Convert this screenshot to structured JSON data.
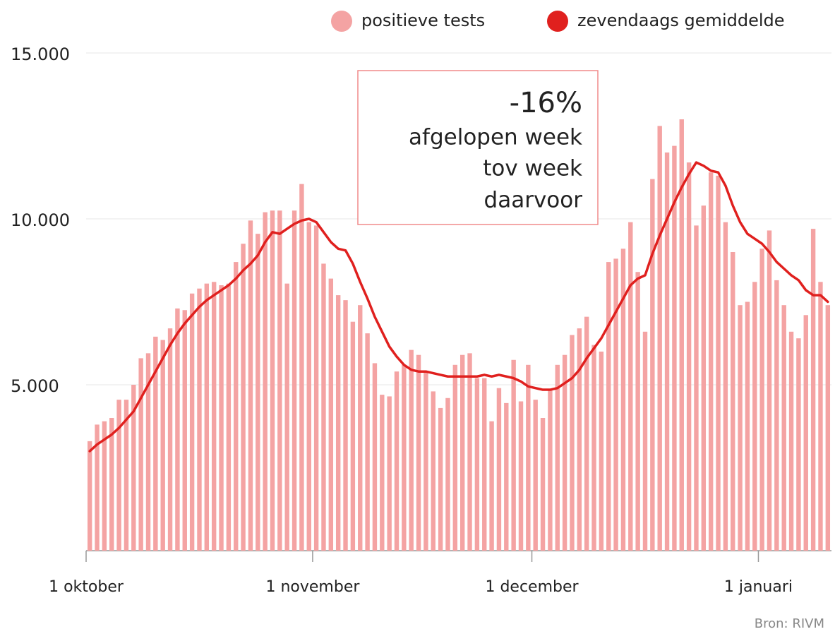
{
  "chart_data": {
    "type": "bar",
    "categories": [
      "1 oktober",
      null,
      null,
      null,
      null,
      null,
      null,
      null,
      null,
      null,
      null,
      null,
      null,
      null,
      null,
      null,
      null,
      null,
      null,
      null,
      null,
      null,
      null,
      null,
      null,
      null,
      null,
      null,
      null,
      null,
      null,
      "1 november",
      null,
      null,
      null,
      null,
      null,
      null,
      null,
      null,
      null,
      null,
      null,
      null,
      null,
      null,
      null,
      null,
      null,
      null,
      null,
      null,
      null,
      null,
      null,
      null,
      null,
      null,
      null,
      null,
      null,
      "1 december",
      null,
      null,
      null,
      null,
      null,
      null,
      null,
      null,
      null,
      null,
      null,
      null,
      null,
      null,
      null,
      null,
      null,
      null,
      null,
      null,
      null,
      null,
      null,
      null,
      null,
      null,
      null,
      null,
      null,
      null,
      "1 januari",
      null,
      null,
      null,
      null,
      null,
      null,
      null,
      null,
      null
    ],
    "series": [
      {
        "name": "positieve tests",
        "type": "bar",
        "color": "#f4a3a3",
        "values": [
          3300,
          3800,
          3900,
          4000,
          4550,
          4550,
          5000,
          5800,
          5950,
          6450,
          6350,
          6700,
          7300,
          7250,
          7750,
          7900,
          8050,
          8100,
          8000,
          8050,
          8700,
          9250,
          9950,
          9550,
          10200,
          10250,
          10250,
          8050,
          10250,
          11050,
          9900,
          9800,
          8650,
          8200,
          7700,
          7550,
          6900,
          7400,
          6550,
          5650,
          4700,
          4650,
          5400,
          5600,
          6050,
          5900,
          5400,
          4800,
          4300,
          4600,
          5600,
          5900,
          5950,
          5200,
          5200,
          3900,
          4900,
          4450,
          5750,
          4500,
          5600,
          4550,
          4000,
          4850,
          5600,
          5900,
          6500,
          6700,
          7050,
          6200,
          6000,
          8700,
          8800,
          9100,
          9900,
          8400,
          6600,
          11200,
          12800,
          12000,
          12200,
          13000,
          11700,
          9800,
          10400,
          11400,
          11300,
          9900,
          9000,
          7400,
          7500,
          8100,
          9100,
          9650,
          8150,
          7400,
          6600,
          6400,
          7100,
          9700,
          8100,
          7400
        ]
      },
      {
        "name": "zevendaags gemiddelde",
        "type": "line",
        "color": "#e0201e",
        "values": [
          3000,
          3200,
          3350,
          3500,
          3700,
          3950,
          4200,
          4600,
          5000,
          5400,
          5800,
          6200,
          6550,
          6850,
          7100,
          7350,
          7550,
          7700,
          7850,
          8000,
          8200,
          8450,
          8650,
          8900,
          9300,
          9600,
          9550,
          9700,
          9850,
          9950,
          10000,
          9900,
          9600,
          9300,
          9100,
          9050,
          8650,
          8100,
          7600,
          7050,
          6600,
          6150,
          5850,
          5600,
          5450,
          5400,
          5400,
          5350,
          5300,
          5250,
          5250,
          5250,
          5250,
          5250,
          5300,
          5250,
          5300,
          5250,
          5200,
          5100,
          4950,
          4900,
          4850,
          4850,
          4900,
          5050,
          5200,
          5450,
          5800,
          6100,
          6400,
          6800,
          7200,
          7600,
          8000,
          8200,
          8300,
          8950,
          9500,
          10000,
          10500,
          10950,
          11350,
          11700,
          11600,
          11450,
          11400,
          11000,
          10400,
          9900,
          9550,
          9400,
          9250,
          9000,
          8700,
          8500,
          8300,
          8150,
          7850,
          7700,
          7700,
          7500
        ]
      }
    ],
    "ylim": [
      0,
      15000
    ],
    "yticks": [
      {
        "value": 5000,
        "label": "5.000"
      },
      {
        "value": 10000,
        "label": "10.000"
      },
      {
        "value": 15000,
        "label": "15.000"
      }
    ],
    "grid": true,
    "legend": "top-right",
    "annotation": {
      "value": "-16%",
      "lines": [
        "afgelopen week",
        "tov week",
        "daarvoor"
      ]
    },
    "source": "Bron: RIVM"
  }
}
